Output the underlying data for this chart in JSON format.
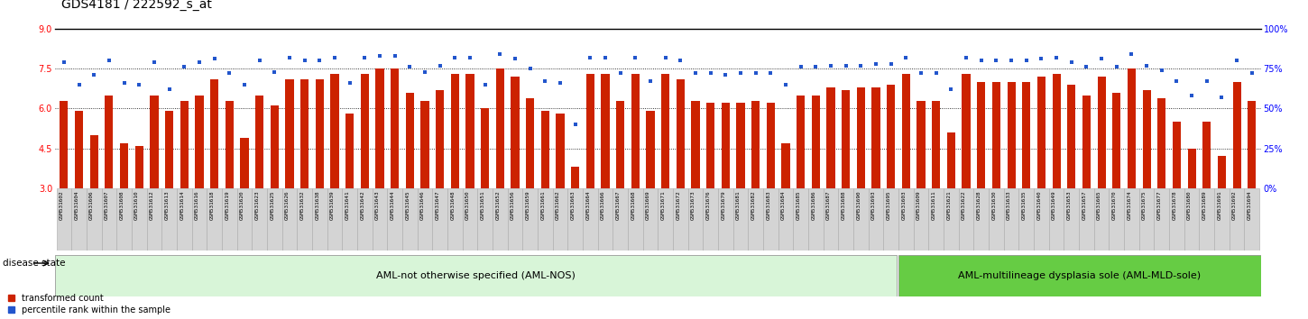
{
  "title": "GDS4181 / 222592_s_at",
  "samples": [
    "GSM531602",
    "GSM531604",
    "GSM531606",
    "GSM531607",
    "GSM531608",
    "GSM531610",
    "GSM531612",
    "GSM531613",
    "GSM531614",
    "GSM531616",
    "GSM531618",
    "GSM531619",
    "GSM531620",
    "GSM531623",
    "GSM531625",
    "GSM531626",
    "GSM531632",
    "GSM531638",
    "GSM531639",
    "GSM531641",
    "GSM531642",
    "GSM531643",
    "GSM531644",
    "GSM531645",
    "GSM531646",
    "GSM531647",
    "GSM531648",
    "GSM531650",
    "GSM531651",
    "GSM531652",
    "GSM531656",
    "GSM531659",
    "GSM531661",
    "GSM531662",
    "GSM531663",
    "GSM531664",
    "GSM531666",
    "GSM531667",
    "GSM531668",
    "GSM531669",
    "GSM531671",
    "GSM531672",
    "GSM531673",
    "GSM531676",
    "GSM531679",
    "GSM531681",
    "GSM531682",
    "GSM531683",
    "GSM531684",
    "GSM531685",
    "GSM531686",
    "GSM531687",
    "GSM531688",
    "GSM531690",
    "GSM531693",
    "GSM531695",
    "GSM531603",
    "GSM531609",
    "GSM531611",
    "GSM531621",
    "GSM531622",
    "GSM531628",
    "GSM531630",
    "GSM531633",
    "GSM531635",
    "GSM531640",
    "GSM531649",
    "GSM531653",
    "GSM531657",
    "GSM531665",
    "GSM531670",
    "GSM531674",
    "GSM531675",
    "GSM531677",
    "GSM531678",
    "GSM531680",
    "GSM531689",
    "GSM531691",
    "GSM531692",
    "GSM531694"
  ],
  "bar_values": [
    6.3,
    5.9,
    5.0,
    6.5,
    4.7,
    4.6,
    6.5,
    5.9,
    6.3,
    6.5,
    7.1,
    6.3,
    4.9,
    6.5,
    6.1,
    7.1,
    7.1,
    7.1,
    7.3,
    5.8,
    7.3,
    7.5,
    7.5,
    6.6,
    6.3,
    6.7,
    7.3,
    7.3,
    6.0,
    7.5,
    7.2,
    6.4,
    5.9,
    5.8,
    3.8,
    7.3,
    7.3,
    6.3,
    7.3,
    5.9,
    7.3,
    7.1,
    6.3,
    6.2,
    6.2,
    6.2,
    6.3,
    6.2,
    4.7,
    6.5,
    6.5,
    6.8,
    6.7,
    6.8,
    6.8,
    6.9,
    7.3,
    6.3,
    6.3,
    5.1,
    7.3,
    7.0,
    7.0,
    7.0,
    7.0,
    7.2,
    7.3,
    6.9,
    6.5,
    7.2,
    6.6,
    7.5,
    6.7,
    6.4,
    5.5,
    4.5,
    5.5,
    4.2,
    7.0,
    6.3
  ],
  "dot_values": [
    79,
    65,
    71,
    80,
    66,
    65,
    79,
    62,
    76,
    79,
    81,
    72,
    65,
    80,
    73,
    82,
    80,
    80,
    82,
    66,
    82,
    83,
    83,
    76,
    73,
    77,
    82,
    82,
    65,
    84,
    81,
    75,
    67,
    66,
    40,
    82,
    82,
    72,
    82,
    67,
    82,
    80,
    72,
    72,
    71,
    72,
    72,
    72,
    65,
    76,
    76,
    77,
    77,
    77,
    78,
    78,
    82,
    72,
    72,
    62,
    82,
    80,
    80,
    80,
    80,
    81,
    82,
    79,
    76,
    81,
    76,
    84,
    77,
    74,
    67,
    58,
    67,
    57,
    80,
    72
  ],
  "group1_label": "AML-not otherwise specified (AML-NOS)",
  "group1_count": 56,
  "group2_label": "AML-multilineage dysplasia sole (AML-MLD-sole)",
  "bar_color": "#cc2200",
  "dot_color": "#2255cc",
  "ylim_left": [
    3,
    9
  ],
  "ylim_right": [
    0,
    100
  ],
  "yticks_left": [
    3,
    4.5,
    6,
    7.5,
    9
  ],
  "yticks_right": [
    0,
    25,
    50,
    75,
    100
  ],
  "grid_values": [
    4.5,
    6.0,
    7.5
  ],
  "group1_color": "#d8f5d8",
  "group2_color": "#66cc44",
  "disease_state_label": "disease state",
  "legend_bar_label": "transformed count",
  "legend_dot_label": "percentile rank within the sample",
  "bg_color": "#ffffff"
}
